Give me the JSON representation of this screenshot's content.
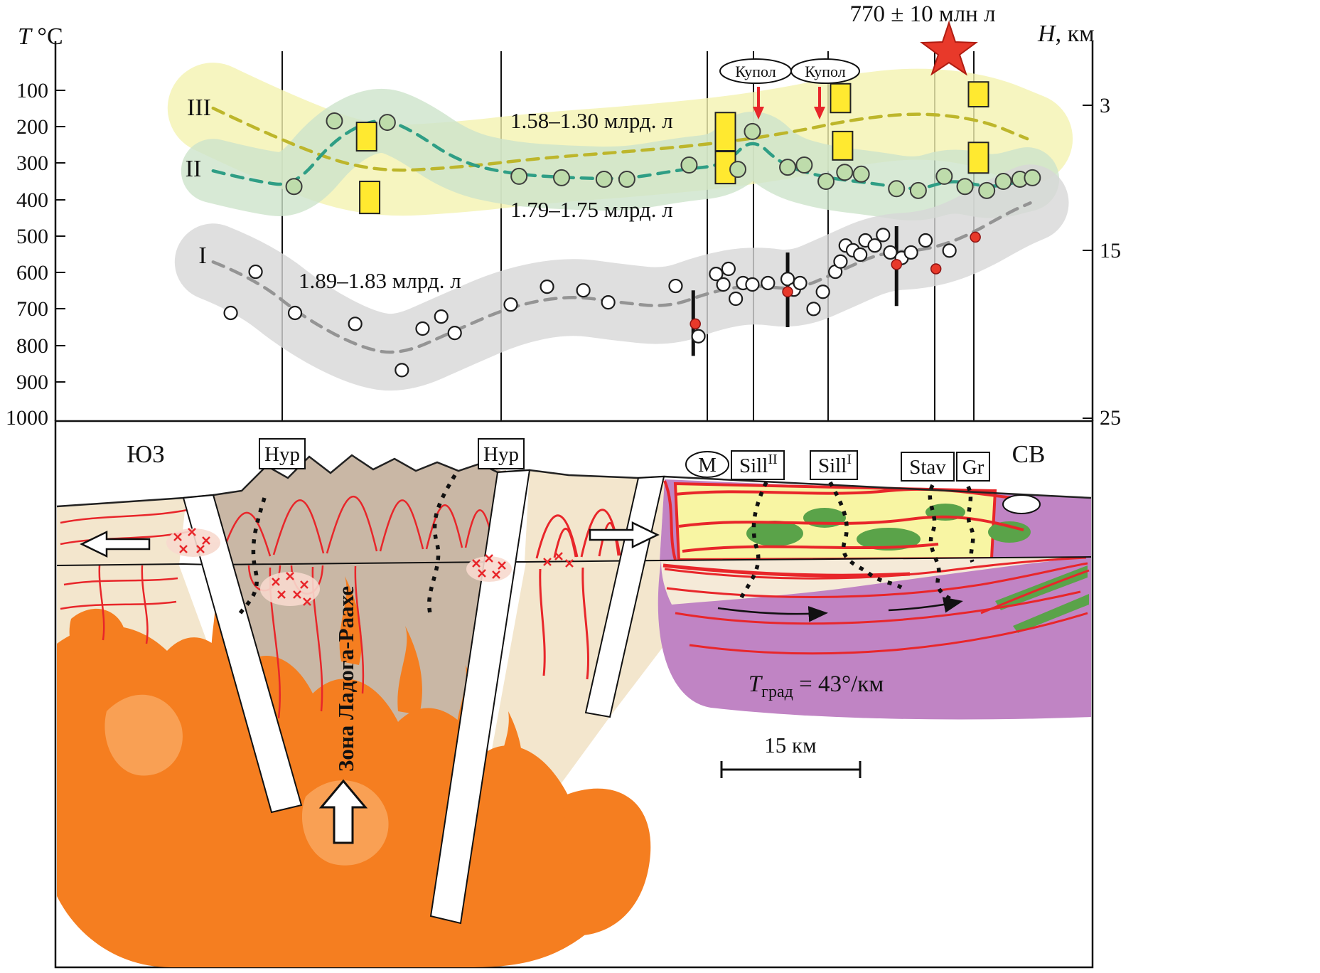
{
  "chart": {
    "star_age": "770 ± 10 млн л",
    "axes": {
      "left_title_var": "T",
      "left_title_unit": " °C",
      "right_title_var": "H",
      "right_title_unit": ", км",
      "left_ticks": [
        "100",
        "200",
        "300",
        "400",
        "500",
        "600",
        "700",
        "800",
        "900",
        "1000"
      ],
      "right_ticks": [
        "3",
        "15",
        "25"
      ]
    },
    "curve_labels": {
      "c1": "I",
      "c2": "II",
      "c3": "III"
    },
    "age_labels": {
      "c3": "1.58–1.30 млрд. л",
      "c2": "1.79–1.75 млрд. л",
      "c1": "1.89–1.83 млрд. л"
    },
    "dome_labels": [
      "Купол",
      "Купол"
    ]
  },
  "chart_data": {
    "type": "scatter",
    "x_axis": "distance along SW–NE profile (fraction 0–1, no numeric scale shown)",
    "y_axis_left": "T, °C (100–1000)",
    "y_axis_right": "H, км (3, 15, 25)",
    "ylim": [
      0,
      1000
    ],
    "curves": [
      {
        "name": "I",
        "age": "1.89–1.83 млрд. л",
        "color": "#949494",
        "band": "#d7d7d7",
        "band_w": 108,
        "band_opacity": 0.8,
        "points": [
          [
            0.152,
            571
          ],
          [
            0.193,
            618
          ],
          [
            0.241,
            727
          ],
          [
            0.296,
            809
          ],
          [
            0.334,
            825
          ],
          [
            0.385,
            760
          ],
          [
            0.44,
            692
          ],
          [
            0.495,
            663
          ],
          [
            0.543,
            682
          ],
          [
            0.591,
            696
          ],
          [
            0.632,
            653
          ],
          [
            0.673,
            633
          ],
          [
            0.714,
            649
          ],
          [
            0.755,
            598
          ],
          [
            0.796,
            545
          ],
          [
            0.838,
            539
          ],
          [
            0.875,
            506
          ],
          [
            0.92,
            434
          ],
          [
            0.94,
            409
          ]
        ]
      },
      {
        "name": "II",
        "age": "1.79–1.75 млрд. л",
        "color": "#2f9e85",
        "band": "#cde4cb",
        "band_w": 90,
        "band_opacity": 0.8,
        "points": [
          [
            0.152,
            321
          ],
          [
            0.193,
            350
          ],
          [
            0.231,
            364
          ],
          [
            0.269,
            233
          ],
          [
            0.31,
            174
          ],
          [
            0.341,
            204
          ],
          [
            0.389,
            297
          ],
          [
            0.44,
            330
          ],
          [
            0.495,
            340
          ],
          [
            0.55,
            344
          ],
          [
            0.604,
            317
          ],
          [
            0.646,
            305
          ],
          [
            0.672,
            227
          ],
          [
            0.7,
            305
          ],
          [
            0.742,
            340
          ],
          [
            0.79,
            356
          ],
          [
            0.831,
            375
          ],
          [
            0.865,
            344
          ],
          [
            0.903,
            369
          ],
          [
            0.937,
            344
          ]
        ]
      },
      {
        "name": "III",
        "age": "1.58–1.30 млрд. л",
        "color": "#bdb62b",
        "band": "#f4f3b0",
        "band_w": 128,
        "band_opacity": 0.8,
        "points": [
          [
            0.152,
            149
          ],
          [
            0.221,
            243
          ],
          [
            0.303,
            325
          ],
          [
            0.392,
            311
          ],
          [
            0.467,
            286
          ],
          [
            0.563,
            266
          ],
          [
            0.646,
            243
          ],
          [
            0.714,
            213
          ],
          [
            0.769,
            180
          ],
          [
            0.831,
            161
          ],
          [
            0.892,
            180
          ],
          [
            0.937,
            233
          ]
        ]
      }
    ],
    "series": [
      {
        "name": "curve I samples (open circles)",
        "marker": "open-circle",
        "points": [
          [
            0.169,
            711
          ],
          [
            0.193,
            598
          ],
          [
            0.231,
            711
          ],
          [
            0.289,
            741
          ],
          [
            0.334,
            868
          ],
          [
            0.354,
            754
          ],
          [
            0.372,
            721
          ],
          [
            0.385,
            766
          ],
          [
            0.439,
            688
          ],
          [
            0.474,
            639
          ],
          [
            0.509,
            649
          ],
          [
            0.533,
            682
          ],
          [
            0.598,
            637
          ],
          [
            0.62,
            775
          ],
          [
            0.637,
            604
          ],
          [
            0.644,
            633
          ],
          [
            0.649,
            590
          ],
          [
            0.656,
            672
          ],
          [
            0.663,
            629
          ],
          [
            0.672,
            633
          ],
          [
            0.687,
            629
          ],
          [
            0.706,
            618
          ],
          [
            0.712,
            647
          ],
          [
            0.718,
            629
          ],
          [
            0.731,
            700
          ],
          [
            0.74,
            653
          ],
          [
            0.752,
            598
          ],
          [
            0.757,
            570
          ],
          [
            0.762,
            526
          ],
          [
            0.769,
            539
          ],
          [
            0.776,
            551
          ],
          [
            0.781,
            512
          ],
          [
            0.79,
            526
          ],
          [
            0.798,
            497
          ],
          [
            0.805,
            545
          ],
          [
            0.816,
            560
          ],
          [
            0.825,
            545
          ],
          [
            0.839,
            512
          ],
          [
            0.862,
            540
          ]
        ]
      },
      {
        "name": "curve II–III samples (green circles)",
        "marker": "green-circle",
        "points": [
          [
            0.23,
            364
          ],
          [
            0.269,
            184
          ],
          [
            0.32,
            188
          ],
          [
            0.447,
            336
          ],
          [
            0.488,
            340
          ],
          [
            0.529,
            344
          ],
          [
            0.551,
            344
          ],
          [
            0.611,
            305
          ],
          [
            0.658,
            317
          ],
          [
            0.672,
            213
          ],
          [
            0.706,
            311
          ],
          [
            0.722,
            305
          ],
          [
            0.743,
            350
          ],
          [
            0.761,
            325
          ],
          [
            0.777,
            330
          ],
          [
            0.811,
            370
          ],
          [
            0.832,
            375
          ],
          [
            0.857,
            336
          ],
          [
            0.877,
            364
          ],
          [
            0.898,
            375
          ],
          [
            0.914,
            350
          ],
          [
            0.93,
            344
          ],
          [
            0.942,
            340
          ]
        ]
      },
      {
        "name": "red determinations",
        "marker": "red-dot",
        "points": [
          [
            0.617,
            741
          ],
          [
            0.706,
            653
          ],
          [
            0.811,
            578
          ],
          [
            0.849,
            590
          ],
          [
            0.887,
            503
          ]
        ]
      },
      {
        "name": "yellow T-intervals",
        "marker": "yellow-bar",
        "points": [
          [
            0.3,
            188,
            266
          ],
          [
            0.303,
            350,
            438
          ],
          [
            0.646,
            161,
            266
          ],
          [
            0.646,
            268,
            356
          ],
          [
            0.757,
            82,
            161
          ],
          [
            0.759,
            213,
            291
          ],
          [
            0.89,
            77,
            145
          ],
          [
            0.89,
            243,
            327
          ]
        ]
      },
      {
        "name": "black T-range bars",
        "marker": "range-bar",
        "points": [
          [
            0.615,
            649,
            829
          ],
          [
            0.706,
            545,
            750
          ],
          [
            0.811,
            473,
            692
          ]
        ]
      }
    ]
  },
  "section": {
    "sw": "ЮЗ",
    "ne": "СВ",
    "markers": [
      {
        "label": "Нур"
      },
      {
        "label": "Нур"
      },
      {
        "label": "М"
      },
      {
        "label": "Sill",
        "sup": "II"
      },
      {
        "label": "Sill",
        "sup": "I"
      },
      {
        "label": "Stav"
      },
      {
        "label": "Gr"
      }
    ],
    "zone_label": "Зона Ладога-Раахе",
    "gradient_var": "T",
    "gradient_sub": "град",
    "gradient_eq": " = 43°/км",
    "scale_label": "15 км"
  },
  "colors": {
    "star_red": "#e8392a",
    "fold_red": "#e8262a",
    "magma_orange": "#f57e20",
    "magma_orange_light": "#f9a45a",
    "basement_purple": "#c084c4",
    "surface_beige": "#f3e6cd",
    "block_gray_tan": "#c9b7a5",
    "top_yellow": "#f8f5a3",
    "green_unit": "#5aa349",
    "sample_green_fill": "#bedcab",
    "yellow_bar": "#ffe930"
  }
}
